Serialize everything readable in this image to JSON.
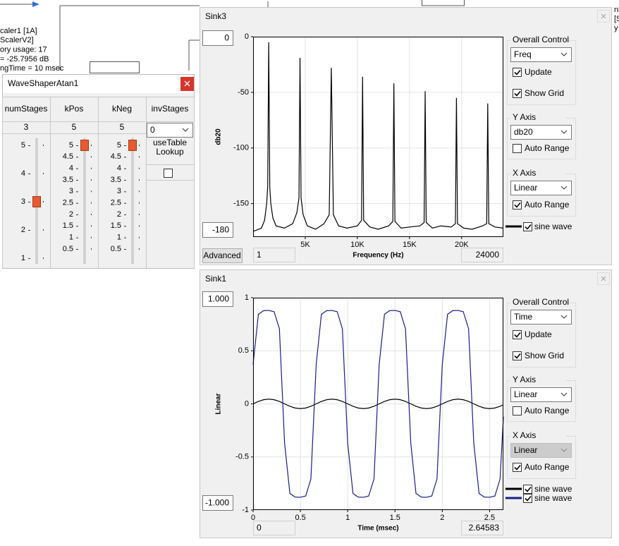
{
  "background": {
    "left_lines": [
      "caler1 [1A]",
      "ScalerV2]",
      "ory usage: 17",
      "= -25.7956 dB",
      "ngTime = 10 msec"
    ],
    "right_lines": [
      "nk",
      "[S",
      "y u"
    ]
  },
  "waveshaper": {
    "title": "WaveShaperAtan1",
    "columns": [
      {
        "name": "numStages",
        "value": 3,
        "ticks": [
          5,
          4,
          3,
          2,
          1
        ]
      },
      {
        "name": "kPos",
        "value": 5,
        "ticks": [
          5,
          4.5,
          4,
          3.5,
          3,
          2.5,
          2,
          1.5,
          1,
          0.5
        ]
      },
      {
        "name": "kNeg",
        "value": 5,
        "ticks": [
          5,
          4.5,
          4,
          3.5,
          3,
          2.5,
          2,
          1.5,
          1,
          0.5
        ]
      }
    ],
    "inv": {
      "name": "invStages",
      "value": "0",
      "lookup_lines": [
        "useTable",
        "Lookup"
      ],
      "lookup_checked": false
    }
  },
  "sink3": {
    "title": "Sink3",
    "advanced": "Advanced",
    "panel": {
      "overall": "Overall Control",
      "mode": "Freq",
      "update": "Update",
      "update_checked": true,
      "show_grid": "Show Grid",
      "y_axis": "Y Axis",
      "y_scale": "db20",
      "y_auto": "Auto Range",
      "y_auto_checked": false,
      "x_axis": "X Axis",
      "x_scale": "Linear",
      "x_scale_disabled": false,
      "x_auto": "Auto Range",
      "x_auto_checked": true
    }
  },
  "sink1": {
    "title": "Sink1",
    "y_max": "1.000",
    "y_min": "-1.000",
    "panel": {
      "overall": "Overall Control",
      "mode": "Time",
      "update": "Update",
      "update_checked": true,
      "show_grid": "Show Grid",
      "y_axis": "Y Axis",
      "y_scale": "Linear",
      "y_auto": "Auto Range",
      "y_auto_checked": false,
      "x_axis": "X Axis",
      "x_scale": "Linear",
      "x_scale_disabled": true,
      "x_auto": "Auto Range",
      "x_auto_checked": true
    }
  },
  "chart_data": [
    {
      "type": "line",
      "x_label": "Frequency (Hz)",
      "y_label": "db20",
      "xlim": [
        1,
        24000
      ],
      "ylim": [
        -180,
        0
      ],
      "xticks": [
        {
          "value": 5000,
          "label": "5K"
        },
        {
          "value": 10000,
          "label": "10K"
        },
        {
          "value": 15000,
          "label": "15K"
        },
        {
          "value": 20000,
          "label": "20K"
        }
      ],
      "yticks": [
        0,
        -50,
        -100,
        -150
      ],
      "grid": true,
      "x": [
        1,
        800,
        1100,
        1300,
        1400,
        1500,
        1600,
        1700,
        1900,
        2200,
        3000,
        3800,
        4200,
        4400,
        4500,
        4600,
        4800,
        5200,
        6000,
        6800,
        7300,
        7500,
        7700,
        8200,
        9000,
        10000,
        10400,
        10500,
        10600,
        11200,
        12000,
        13000,
        13400,
        13500,
        13600,
        14200,
        15000,
        16000,
        16400,
        16500,
        16600,
        17200,
        18000,
        19000,
        19400,
        19500,
        19600,
        20200,
        21000,
        22000,
        22400,
        22500,
        22600,
        23200,
        24000
      ],
      "series": [
        {
          "name": "sine wave",
          "color": "#000000",
          "values": [
            -175,
            -172,
            -165,
            -150,
            -135,
            -5,
            -135,
            -150,
            -163,
            -170,
            -172,
            -168,
            -158,
            -145,
            -19,
            -145,
            -160,
            -170,
            -173,
            -168,
            -160,
            -28,
            -160,
            -170,
            -172,
            -170,
            -165,
            -36,
            -165,
            -171,
            -173,
            -170,
            -166,
            -42,
            -166,
            -172,
            -171,
            -170,
            -167,
            -49,
            -167,
            -172,
            -170,
            -171,
            -168,
            -55,
            -168,
            -172,
            -173,
            -170,
            -168,
            -60,
            -168,
            -171,
            -172
          ]
        }
      ]
    },
    {
      "type": "line",
      "x_label": "Time (msec)",
      "y_label": "Linear",
      "xlim": [
        0,
        2.64583
      ],
      "ylim": [
        -1,
        1
      ],
      "xticks": [
        0,
        0.5,
        1,
        1.5,
        2,
        2.5
      ],
      "yticks": [
        1,
        0.5,
        0,
        -0.5,
        -1
      ],
      "grid": true,
      "x": [
        0,
        0.056,
        0.111,
        0.167,
        0.222,
        0.278,
        0.333,
        0.389,
        0.444,
        0.5,
        0.556,
        0.611,
        0.667,
        0.722,
        0.778,
        0.833,
        0.889,
        0.944,
        1,
        1.056,
        1.111,
        1.167,
        1.222,
        1.278,
        1.333,
        1.389,
        1.444,
        1.5,
        1.556,
        1.611,
        1.667,
        1.722,
        1.778,
        1.833,
        1.889,
        1.944,
        2,
        2.056,
        2.111,
        2.167,
        2.222,
        2.278,
        2.333,
        2.389,
        2.444,
        2.5,
        2.556,
        2.611,
        2.646
      ],
      "series": [
        {
          "name": "sine wave",
          "color": "#000000",
          "values": [
            0,
            0.023,
            0.039,
            0.045,
            0.039,
            0.023,
            0,
            -0.023,
            -0.039,
            -0.045,
            -0.039,
            -0.023,
            0,
            0.023,
            0.039,
            0.045,
            0.039,
            0.023,
            0,
            -0.023,
            -0.039,
            -0.045,
            -0.039,
            -0.023,
            0,
            0.023,
            0.039,
            0.045,
            0.039,
            0.023,
            0,
            -0.023,
            -0.039,
            -0.045,
            -0.039,
            -0.023,
            0,
            0.023,
            0.039,
            0.045,
            0.039,
            0.023,
            0,
            -0.023,
            -0.039,
            -0.045,
            -0.039,
            -0.023,
            -0.009
          ]
        },
        {
          "name": "sine wave",
          "color": "#1c1c8e",
          "values": [
            0.372,
            0.844,
            0.878,
            0.88,
            0.868,
            0.707,
            -0.372,
            -0.844,
            -0.878,
            -0.88,
            -0.868,
            -0.707,
            0.372,
            0.844,
            0.878,
            0.88,
            0.868,
            0.707,
            -0.372,
            -0.844,
            -0.878,
            -0.88,
            -0.868,
            -0.707,
            0.372,
            0.844,
            0.878,
            0.88,
            0.868,
            0.707,
            -0.372,
            -0.844,
            -0.878,
            -0.88,
            -0.868,
            -0.707,
            0.372,
            0.844,
            0.878,
            0.88,
            0.868,
            0.707,
            -0.372,
            -0.844,
            -0.878,
            -0.88,
            -0.868,
            -0.707,
            -0.122
          ]
        }
      ]
    }
  ]
}
